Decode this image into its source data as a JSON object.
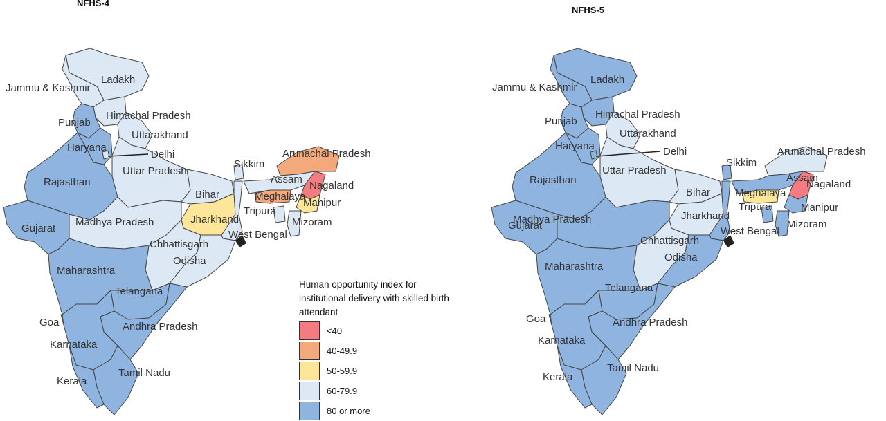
{
  "maps": [
    {
      "title": "NFHS-4",
      "labels": {
        "jk": "Jammu & Kashmir",
        "ladakh": "Ladakh",
        "hp": "Himachal Pradesh",
        "punjab": "Punjab",
        "uk": "Uttarakhand",
        "haryana": "Haryana",
        "delhi": "Delhi",
        "up": "Uttar Pradesh",
        "rajasthan": "Rajasthan",
        "bihar": "Bihar",
        "sikkim": "Sikkim",
        "arunachal": "Arunachal Pradesh",
        "assam": "Assam",
        "nagaland": "Nagaland",
        "meghalaya": "Meghalaya",
        "manipur": "Manipur",
        "tripura": "Tripura",
        "mizoram": "Mizoram",
        "jharkhand": "Jharkhand",
        "wb": "West Bengal",
        "gujarat": "Gujarat",
        "mp": "Madhya Pradesh",
        "chhattisgarh": "Chhattisgarh",
        "odisha": "Odisha",
        "maharashtra": "Maharashtra",
        "telangana": "Telangana",
        "goa": "Goa",
        "ap": "Andhra Pradesh",
        "karnataka": "Karnataka",
        "tn": "Tamil Nadu",
        "kerala": "Kerala"
      },
      "category": {
        "ladakh": "60-79.9",
        "jk": "60-79.9",
        "hp": "60-79.9",
        "punjab": "80 or more",
        "uk": "60-79.9",
        "haryana": "80 or more",
        "delhi": "60-79.9",
        "rajasthan": "80 or more",
        "up": "60-79.9",
        "bihar": "60-79.9",
        "jharkhand": "50-59.9",
        "wb": "60-79.9",
        "sikkim": "60-79.9",
        "arunachal": "40-49.9",
        "assam": "60-79.9",
        "nagaland": "<40",
        "meghalaya": "40-49.9",
        "manipur": "50-59.9",
        "tripura": "60-79.9",
        "mizoram": "60-79.9",
        "gujarat": "80 or more",
        "mp": "60-79.9",
        "chhattisgarh": "60-79.9",
        "odisha": "60-79.9",
        "maharashtra": "80 or more",
        "telangana": "80 or more",
        "goa": "80 or more",
        "ap": "80 or more",
        "karnataka": "80 or more",
        "tn": "80 or more",
        "kerala": "80 or more"
      }
    },
    {
      "title": "NFHS-5",
      "labels": {
        "jk": "Jammu & Kashmir",
        "ladakh": "Ladakh",
        "hp": "Himachal Pradesh",
        "punjab": "Punjab",
        "uk": "Uttarakhand",
        "haryana": "Haryana",
        "delhi": "Delhi",
        "up": "Uttar Pradesh",
        "rajasthan": "Rajasthan",
        "bihar": "Bihar",
        "sikkim": "Sikkim",
        "arunachal": "Arunachal Pradesh",
        "assam": "Assam",
        "nagaland": "Nagaland",
        "meghalaya": "Meghalaya",
        "manipur": "Manipur",
        "tripura": "Tripura",
        "mizoram": "Mizoram",
        "jharkhand": "Jharkhand",
        "wb": "West Bengal",
        "gujarat": "Gujarat",
        "mp": "Madhya Pradesh",
        "chhattisgarh": "Chhattisgarh",
        "odisha": "Odisha",
        "maharashtra": "Maharashtra",
        "telangana": "Telangana",
        "goa": "Goa",
        "ap": "Andhra Pradesh",
        "karnataka": "Karnataka",
        "tn": "Tamil Nadu",
        "kerala": "Kerala"
      },
      "category": {
        "ladakh": "80 or more",
        "jk": "80 or more",
        "hp": "80 or more",
        "punjab": "80 or more",
        "uk": "60-79.9",
        "haryana": "80 or more",
        "delhi": "80 or more",
        "rajasthan": "80 or more",
        "up": "60-79.9",
        "bihar": "60-79.9",
        "jharkhand": "60-79.9",
        "wb": "80 or more",
        "sikkim": "80 or more",
        "arunachal": "60-79.9",
        "assam": "80 or more",
        "nagaland": "<40",
        "meghalaya": "50-59.9",
        "manipur": "80 or more",
        "tripura": "80 or more",
        "mizoram": "80 or more",
        "gujarat": "80 or more",
        "mp": "80 or more",
        "chhattisgarh": "60-79.9",
        "odisha": "80 or more",
        "maharashtra": "80 or more",
        "telangana": "80 or more",
        "goa": "80 or more",
        "ap": "80 or more",
        "karnataka": "80 or more",
        "tn": "80 or more",
        "kerala": "80 or more"
      }
    }
  ],
  "legend": {
    "title": "Human opportunity index for institutional delivery with skilled birth attendant",
    "items": [
      {
        "label": "<40",
        "color": "#f47c80"
      },
      {
        "label": "40-49.9",
        "color": "#f3a97c"
      },
      {
        "label": "50-59.9",
        "color": "#fde69a"
      },
      {
        "label": "60-79.9",
        "color": "#dde8f5"
      },
      {
        "label": "80 or more",
        "color": "#8fb4e0"
      }
    ]
  }
}
